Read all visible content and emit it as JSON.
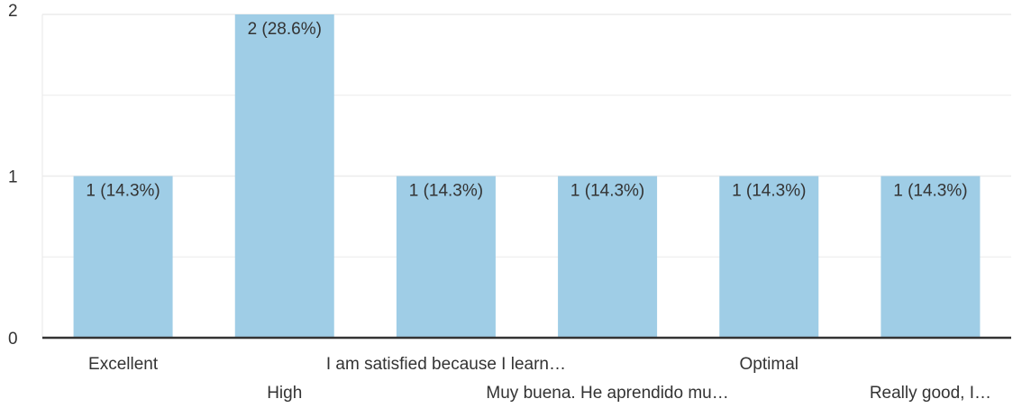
{
  "chart_data": {
    "type": "bar",
    "categories": [
      "Excellent",
      "High",
      "I am satisfied because I learn…",
      "Muy buena. He aprendido mu…",
      "Optimal",
      "Really good, I…"
    ],
    "values": [
      1,
      2,
      1,
      1,
      1,
      1
    ],
    "data_labels": [
      "1 (14.3%)",
      "2 (28.6%)",
      "1 (14.3%)",
      "1 (14.3%)",
      "1 (14.3%)",
      "1 (14.3%)"
    ],
    "y_ticks": [
      "0",
      "1",
      "2"
    ],
    "ylim": [
      0,
      2
    ],
    "grid": true,
    "title": "",
    "xlabel": "",
    "ylabel": "",
    "colors": {
      "bar": "#9fcde6",
      "grid": "#ebebeb",
      "axis": "#333333",
      "text": "#333333"
    }
  }
}
